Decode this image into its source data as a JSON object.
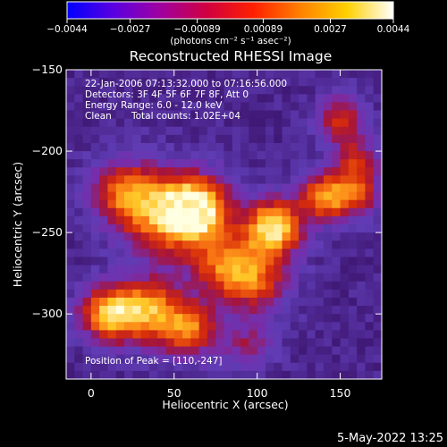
{
  "chart_data": {
    "type": "heatmap",
    "title": "Reconstructed RHESSI Image",
    "xlabel": "Heliocentric X (arcsec)",
    "ylabel": "Heliocentric Y (arcsec)",
    "xlim": [
      -15,
      175
    ],
    "ylim": [
      -340,
      -150
    ],
    "xticks": [
      {
        "value": 0,
        "label": "0"
      },
      {
        "value": 50,
        "label": "50"
      },
      {
        "value": 100,
        "label": "100"
      },
      {
        "value": 150,
        "label": "150"
      }
    ],
    "yticks": [
      {
        "value": -150,
        "label": "−150"
      },
      {
        "value": -200,
        "label": "−200"
      },
      {
        "value": -250,
        "label": "−250"
      },
      {
        "value": -300,
        "label": "−300"
      }
    ],
    "colorbar": {
      "range": [
        -0.0044,
        0.0044
      ],
      "ticks": [
        {
          "value": -0.0044,
          "label": "−0.0044"
        },
        {
          "value": -0.0027,
          "label": "−0.0027"
        },
        {
          "value": -0.00089,
          "label": "−0.00089"
        },
        {
          "value": 0.00089,
          "label": "0.00089"
        },
        {
          "value": 0.0027,
          "label": "0.0027"
        },
        {
          "value": 0.0044,
          "label": "0.0044"
        }
      ],
      "units_label": "(photons cm⁻² s⁻¹ asec⁻²)",
      "colors": [
        "#0000ff",
        "#5a00e0",
        "#a000a0",
        "#d00040",
        "#ff2000",
        "#ff8000",
        "#ffd000",
        "#ffffff"
      ]
    },
    "sources": [
      {
        "x": 110,
        "y": -247,
        "amplitude": 1.0,
        "width": 12
      },
      {
        "x": 65,
        "y": -235,
        "amplitude": 0.85,
        "width": 14
      },
      {
        "x": 45,
        "y": -240,
        "amplitude": 0.7,
        "width": 18
      },
      {
        "x": 20,
        "y": -225,
        "amplitude": 0.6,
        "width": 14
      },
      {
        "x": 140,
        "y": -228,
        "amplitude": 0.75,
        "width": 10
      },
      {
        "x": 160,
        "y": -226,
        "amplitude": 0.55,
        "width": 10
      },
      {
        "x": 160,
        "y": -205,
        "amplitude": 0.45,
        "width": 10
      },
      {
        "x": 10,
        "y": -300,
        "amplitude": 0.8,
        "width": 12
      },
      {
        "x": 35,
        "y": -298,
        "amplitude": 0.75,
        "width": 14
      },
      {
        "x": 60,
        "y": -310,
        "amplitude": 0.65,
        "width": 12
      },
      {
        "x": 80,
        "y": -270,
        "amplitude": 0.6,
        "width": 14
      },
      {
        "x": 100,
        "y": -280,
        "amplitude": 0.55,
        "width": 14
      },
      {
        "x": 150,
        "y": -180,
        "amplitude": 0.5,
        "width": 10
      },
      {
        "x": 95,
        "y": -320,
        "amplitude": 0.35,
        "width": 10
      }
    ],
    "peak": {
      "x": 110,
      "y": -247
    }
  },
  "annotations": {
    "time_range": "22-Jan-2006 07:13:32.000 to 07:16:56.000",
    "detectors": "Detectors: 3F 4F 5F 6F 7F 8F, Att 0",
    "energy_range": "Energy Range: 6.0 - 12.0 keV",
    "clean_label": "Clean",
    "total_counts": "Total counts: 1.02E+04",
    "peak_position": "Position of Peak = [110,-247]"
  },
  "footer": {
    "timestamp": "5-May-2022 13:25"
  }
}
